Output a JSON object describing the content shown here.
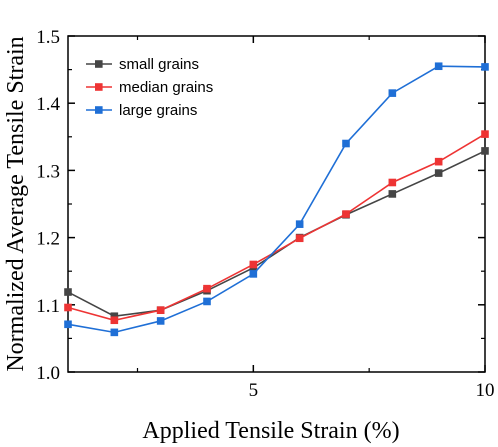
{
  "chart_data": {
    "type": "line",
    "xlabel": "Applied Tensile Strain (%)",
    "ylabel": "Normalized Average Tensile Strain",
    "xlim": [
      1,
      10
    ],
    "ylim": [
      1.0,
      1.5
    ],
    "x_ticks": [
      5,
      10
    ],
    "y_ticks": [
      1.0,
      1.1,
      1.2,
      1.3,
      1.4,
      1.5
    ],
    "x_tick_labels": [
      "5",
      "10"
    ],
    "y_tick_labels": [
      "1.0",
      "1.1",
      "1.2",
      "1.3",
      "1.4",
      "1.5"
    ],
    "x": [
      1,
      2,
      3,
      4,
      5,
      6,
      7,
      8,
      9,
      10
    ],
    "series": [
      {
        "name": "small grains",
        "color": "#454545",
        "values": [
          1.119,
          1.083,
          1.092,
          1.121,
          1.155,
          1.2,
          1.234,
          1.265,
          1.296,
          1.329
        ]
      },
      {
        "name": "median grains",
        "color": "#ee3434",
        "values": [
          1.096,
          1.077,
          1.092,
          1.124,
          1.16,
          1.199,
          1.235,
          1.282,
          1.313,
          1.354
        ]
      },
      {
        "name": "large grains",
        "color": "#1f6fd6",
        "values": [
          1.071,
          1.059,
          1.076,
          1.105,
          1.146,
          1.22,
          1.34,
          1.415,
          1.455,
          1.454
        ]
      }
    ],
    "legend_position": "top-left",
    "grid": false,
    "marker": "square"
  }
}
